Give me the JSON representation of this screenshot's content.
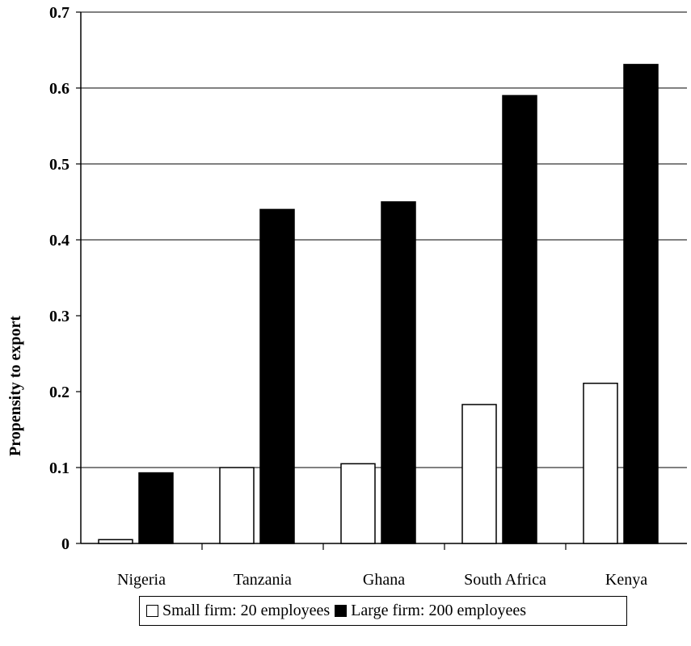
{
  "chart_data": {
    "type": "bar",
    "categories": [
      "Nigeria",
      "Tanzania",
      "Ghana",
      "South Africa",
      "Kenya"
    ],
    "series": [
      {
        "name": "Small firm: 20 employees",
        "values": [
          0.005,
          0.1,
          0.105,
          0.183,
          0.211
        ],
        "color": "#ffffff"
      },
      {
        "name": "Large firm: 200 employees",
        "values": [
          0.093,
          0.44,
          0.45,
          0.59,
          0.631
        ],
        "color": "#000000"
      }
    ],
    "yticks": [
      "0",
      "0.1",
      "0.2",
      "0.3",
      "0.4",
      "0.5",
      "0.6",
      "0.7"
    ],
    "ylabel": "Propensity to export",
    "xlabel": "",
    "ylim": [
      0,
      0.7
    ],
    "gridlines": [
      0.1,
      0.4,
      0.5,
      0.6,
      0.7
    ],
    "legend_position": "bottom"
  }
}
